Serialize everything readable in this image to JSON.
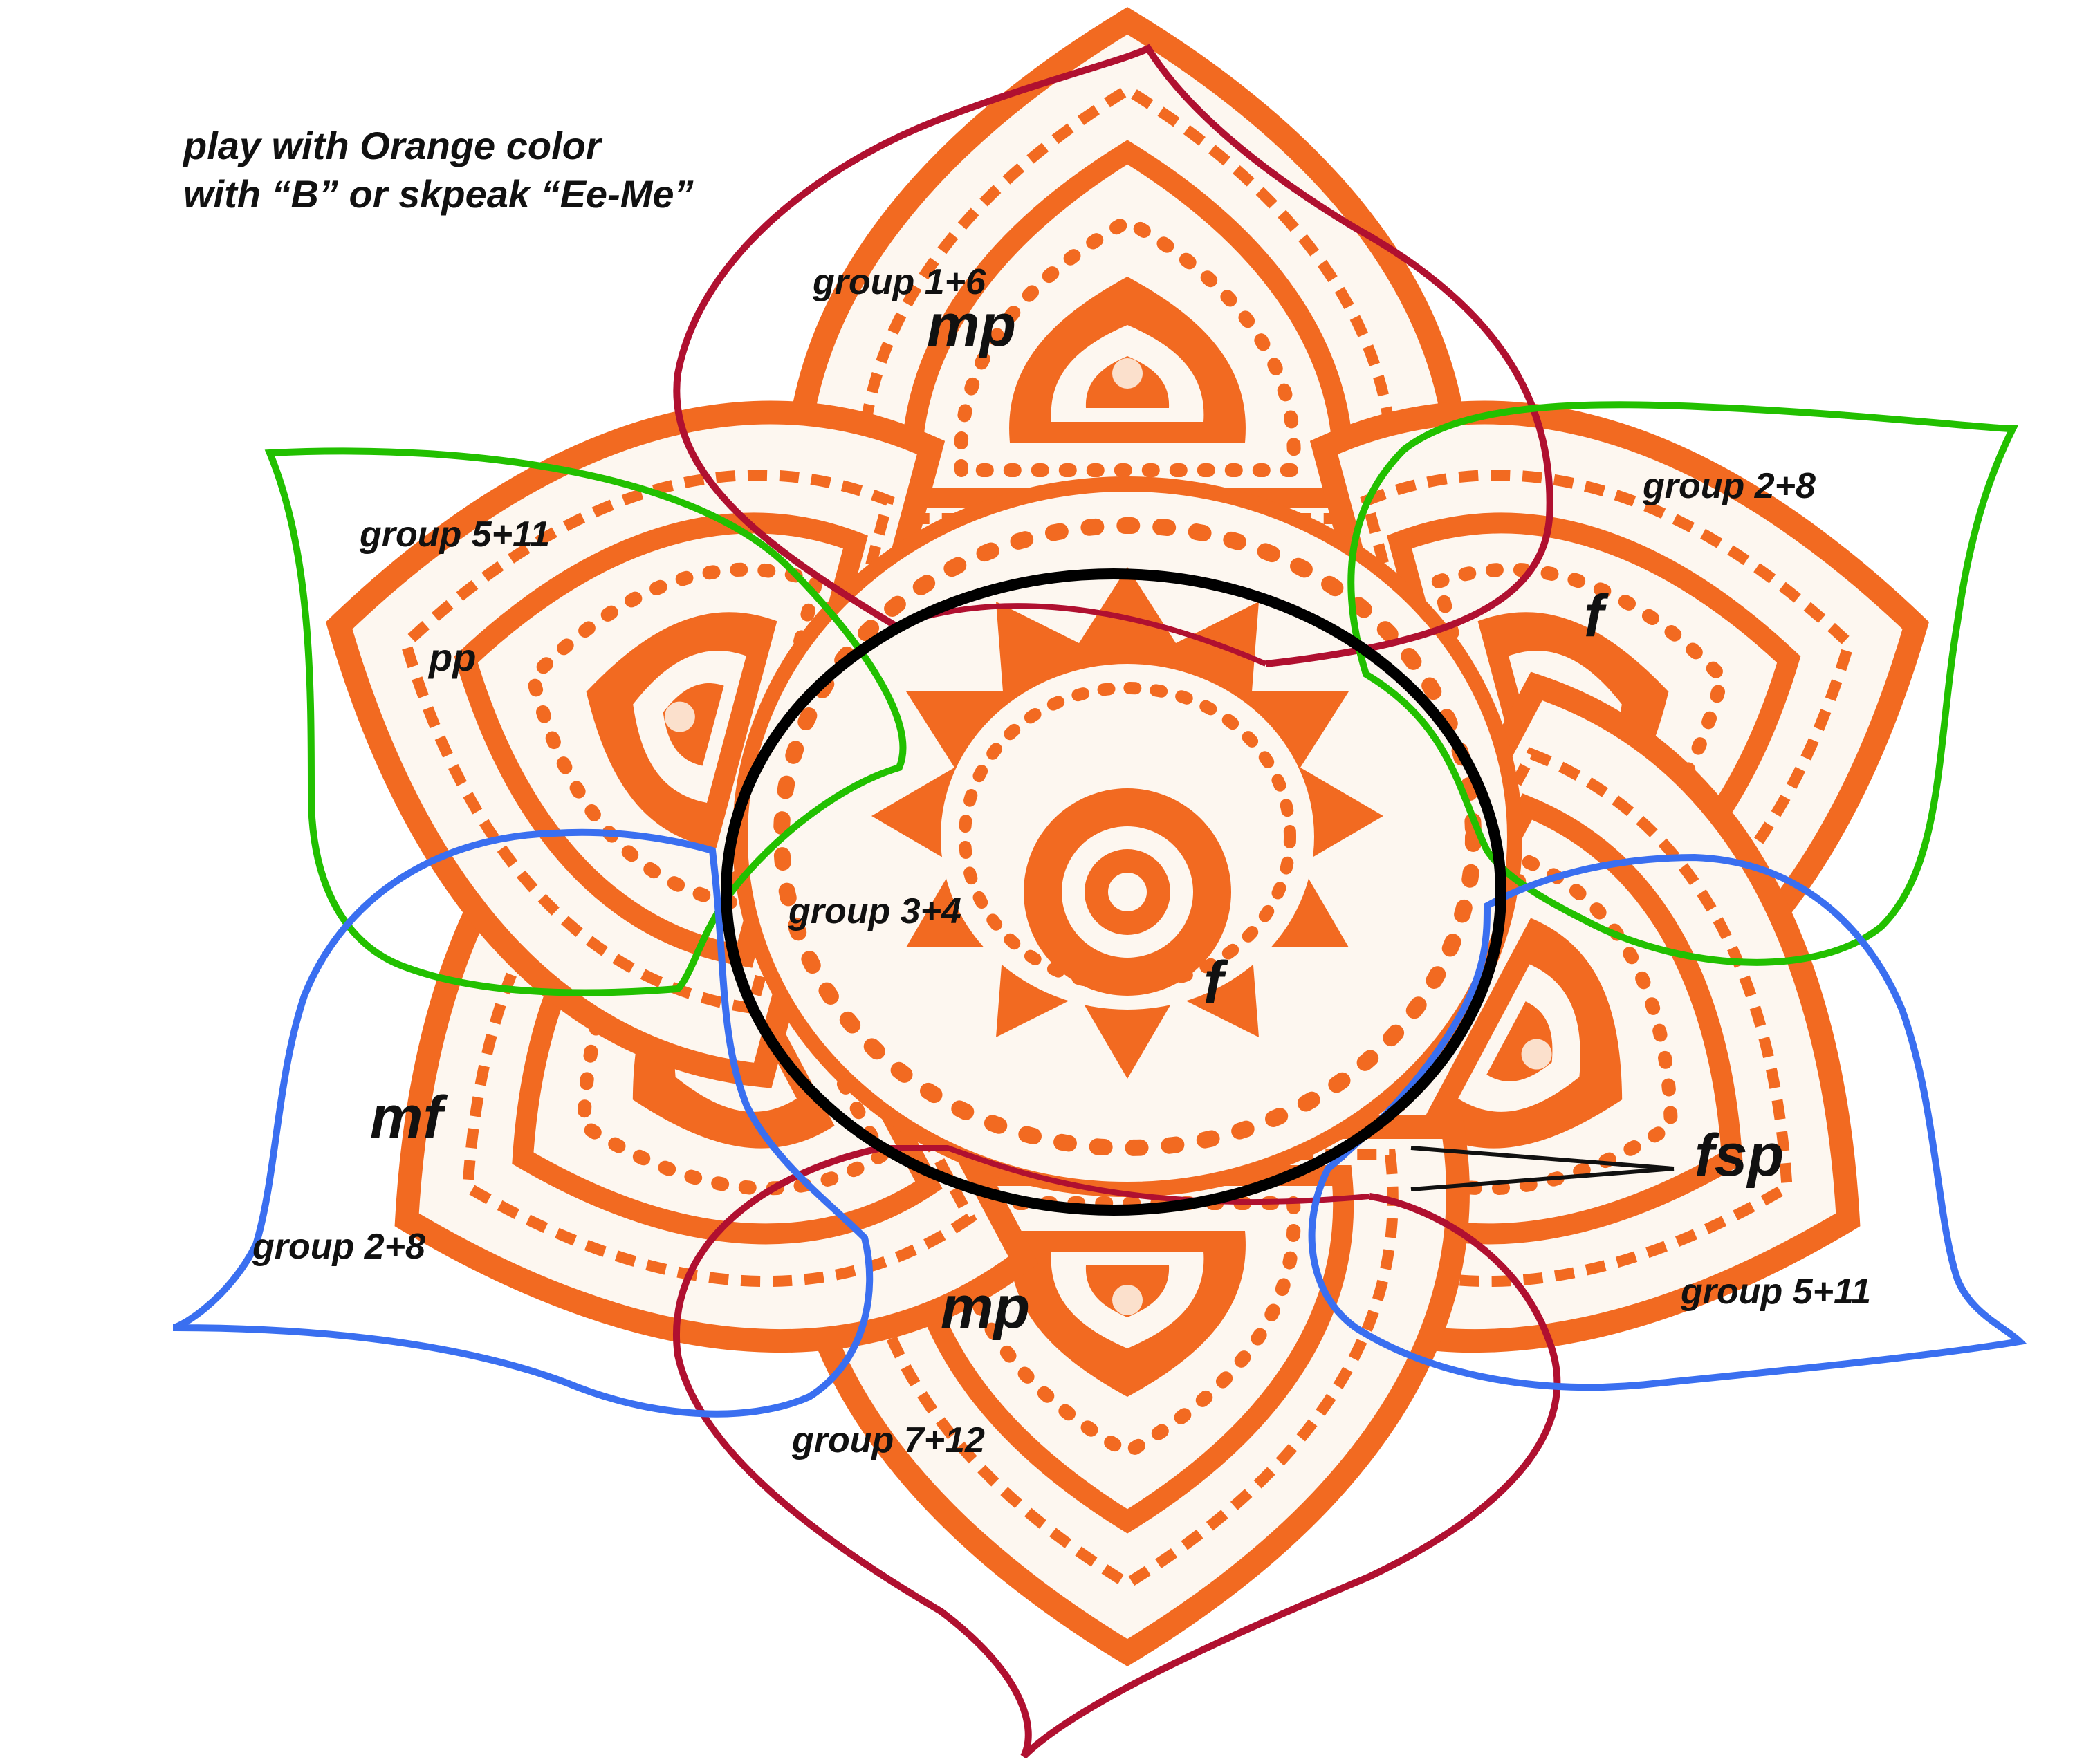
{
  "instruction": {
    "line1": "play with Orange color",
    "line2": "with “B” or skpeak “Ee-Me”"
  },
  "petals": {
    "top": {
      "group": "group  1+6",
      "dynamic": "mp"
    },
    "upper_right": {
      "group": "group  2+8",
      "dynamic": "f"
    },
    "upper_left": {
      "group": "group 5+11",
      "dynamic": "pp"
    },
    "lower_left": {
      "group": "group  2+8",
      "dynamic": "mf"
    },
    "lower_right": {
      "group": "group 5+11",
      "dynamic": "fsp"
    },
    "bottom": {
      "group": "group  7+12",
      "dynamic": "mp"
    }
  },
  "center": {
    "group": "group  3+4",
    "dynamic": "f"
  },
  "colors": {
    "mandala_orange": "#f26a21",
    "mandala_light": "#fbe0cc",
    "background": "#ffffff",
    "outline_red": "#b01030",
    "outline_green": "#22c000",
    "outline_blue": "#3a6ff0",
    "outline_black": "#000000"
  }
}
